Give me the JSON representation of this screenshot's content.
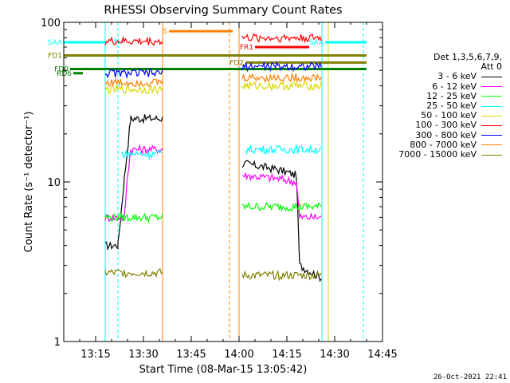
{
  "chart_data": {
    "type": "line",
    "title": "RHESSI Observing Summary Count Rates",
    "xlabel": "Start Time (08-Mar-15 13:05:42)",
    "ylabel": "Count Rate (s⁻¹ detector⁻¹)",
    "y_scale": "log",
    "ylim": [
      1,
      100
    ],
    "xlim": [
      "13:05",
      "14:45"
    ],
    "x_ticks": [
      "13:15",
      "13:30",
      "13:45",
      "14:00",
      "14:15",
      "14:30",
      "14:45"
    ],
    "y_ticks": [
      "1",
      "10",
      "100"
    ],
    "legend_header": [
      "Det 1,3,5,6,7,9,",
      "Att 0"
    ],
    "legend_placement": "right, outside",
    "series": [
      {
        "name": "3 - 6 keV",
        "color": "#000000",
        "segments": [
          {
            "x": [
              "13:18",
              "13:22",
              "13:23",
              "13:24",
              "13:26",
              "13:36"
            ],
            "y": [
              4.0,
              4.0,
              6.5,
              10.5,
              25.0,
              25.0
            ]
          },
          {
            "x": [
              "14:01",
              "14:02",
              "14:12",
              "14:18",
              "14:19",
              "14:26"
            ],
            "y": [
              13.0,
              13.0,
              12.0,
              11.0,
              3.0,
              2.5
            ]
          }
        ]
      },
      {
        "name": "6 - 12 keV",
        "color": "#ff00ff",
        "segments": [
          {
            "x": [
              "13:18",
              "13:24",
              "13:25",
              "13:26",
              "13:36"
            ],
            "y": [
              6.0,
              6.0,
              11.0,
              16.0,
              16.0
            ]
          },
          {
            "x": [
              "14:01",
              "14:02",
              "14:12",
              "14:18",
              "14:19",
              "14:26"
            ],
            "y": [
              11.0,
              11.0,
              10.5,
              10.0,
              6.0,
              6.0
            ]
          }
        ]
      },
      {
        "name": "12 - 25 keV",
        "color": "#00ff00",
        "segments": [
          {
            "x": [
              "13:18",
              "13:36"
            ],
            "y": [
              6.0,
              6.0
            ]
          },
          {
            "x": [
              "14:01",
              "14:26"
            ],
            "y": [
              7.0,
              7.0
            ]
          }
        ]
      },
      {
        "name": "25 - 50 keV",
        "color": "#00ffff",
        "segments": [
          {
            "x": [
              "13:23",
              "13:36"
            ],
            "y": [
              15.0,
              15.0
            ]
          },
          {
            "x": [
              "14:02",
              "14:26"
            ],
            "y": [
              16.0,
              16.0
            ]
          }
        ]
      },
      {
        "name": "50 - 100 keV",
        "color": "#d9d900",
        "segments": [
          {
            "x": [
              "13:18",
              "13:36"
            ],
            "y": [
              38.0,
              38.0
            ]
          },
          {
            "x": [
              "14:01",
              "14:26"
            ],
            "y": [
              40.0,
              40.0
            ]
          }
        ]
      },
      {
        "name": "100 - 300 keV",
        "color": "#ff0000",
        "segments": [
          {
            "x": [
              "13:18",
              "13:36"
            ],
            "y": [
              76.0,
              76.0
            ]
          },
          {
            "x": [
              "14:01",
              "14:26"
            ],
            "y": [
              80.0,
              80.0
            ]
          }
        ]
      },
      {
        "name": "300 - 800 keV",
        "color": "#0000ff",
        "segments": [
          {
            "x": [
              "13:18",
              "13:36"
            ],
            "y": [
              48.0,
              48.0
            ]
          },
          {
            "x": [
              "14:01",
              "14:26"
            ],
            "y": [
              53.0,
              53.0
            ]
          }
        ]
      },
      {
        "name": "800 - 7000 keV",
        "color": "#ff8000",
        "segments": [
          {
            "x": [
              "13:18",
              "13:36"
            ],
            "y": [
              42.0,
              42.0
            ]
          },
          {
            "x": [
              "14:01",
              "14:26"
            ],
            "y": [
              45.0,
              45.0
            ]
          }
        ]
      },
      {
        "name": "7000 - 15000 keV",
        "color": "#808000",
        "segments": [
          {
            "x": [
              "13:18",
              "13:36"
            ],
            "y": [
              2.7,
              2.7
            ]
          },
          {
            "x": [
              "14:01",
              "14:26"
            ],
            "y": [
              2.6,
              2.6
            ]
          }
        ]
      }
    ],
    "flags": [
      {
        "label": "S",
        "color": "#ff8000",
        "x": [
          "13:38",
          "13:58"
        ],
        "y": 88
      },
      {
        "label": "SAA",
        "color": "#00ffff",
        "x": [
          "13:05",
          "13:18"
        ],
        "y": 75
      },
      {
        "label": "SAA",
        "color": "#00ffff",
        "x": [
          "14:27",
          "14:40"
        ],
        "y": 75
      },
      {
        "label": "N",
        "color": "#00ffff",
        "x": [
          "13:23",
          "13:24"
        ],
        "y": 76
      },
      {
        "label": "FD1",
        "color": "#808000",
        "x": [
          "13:05",
          "14:40"
        ],
        "y": 62
      },
      {
        "label": "FD2",
        "color": "#808000",
        "x": [
          "14:02",
          "14:40"
        ],
        "y": 56
      },
      {
        "label": "FD0",
        "color": "#008000",
        "x": [
          "13:07",
          "14:40"
        ],
        "y": 51
      },
      {
        "label": "RD6",
        "color": "#008000",
        "x": [
          "13:08",
          "13:11"
        ],
        "y": 48
      },
      {
        "label": "FR1",
        "color": "#ff0000",
        "x": [
          "14:05",
          "14:22"
        ],
        "y": 70
      }
    ],
    "vlines": [
      {
        "x": "13:18",
        "color": "#00ffff",
        "style": "solid"
      },
      {
        "x": "13:22",
        "color": "#00ffff",
        "style": "dashed"
      },
      {
        "x": "13:36",
        "color": "#ff8000",
        "style": "solid"
      },
      {
        "x": "13:57",
        "color": "#ff8000",
        "style": "dashed"
      },
      {
        "x": "14:00",
        "color": "#ff8000",
        "style": "solid"
      },
      {
        "x": "14:26",
        "color": "#00ffff",
        "style": "solid"
      },
      {
        "x": "14:28",
        "color": "#d9d900",
        "style": "solid"
      },
      {
        "x": "14:39",
        "color": "#00ffff",
        "style": "dashed"
      }
    ]
  },
  "timestamp": "26-Oct-2021 22:41"
}
